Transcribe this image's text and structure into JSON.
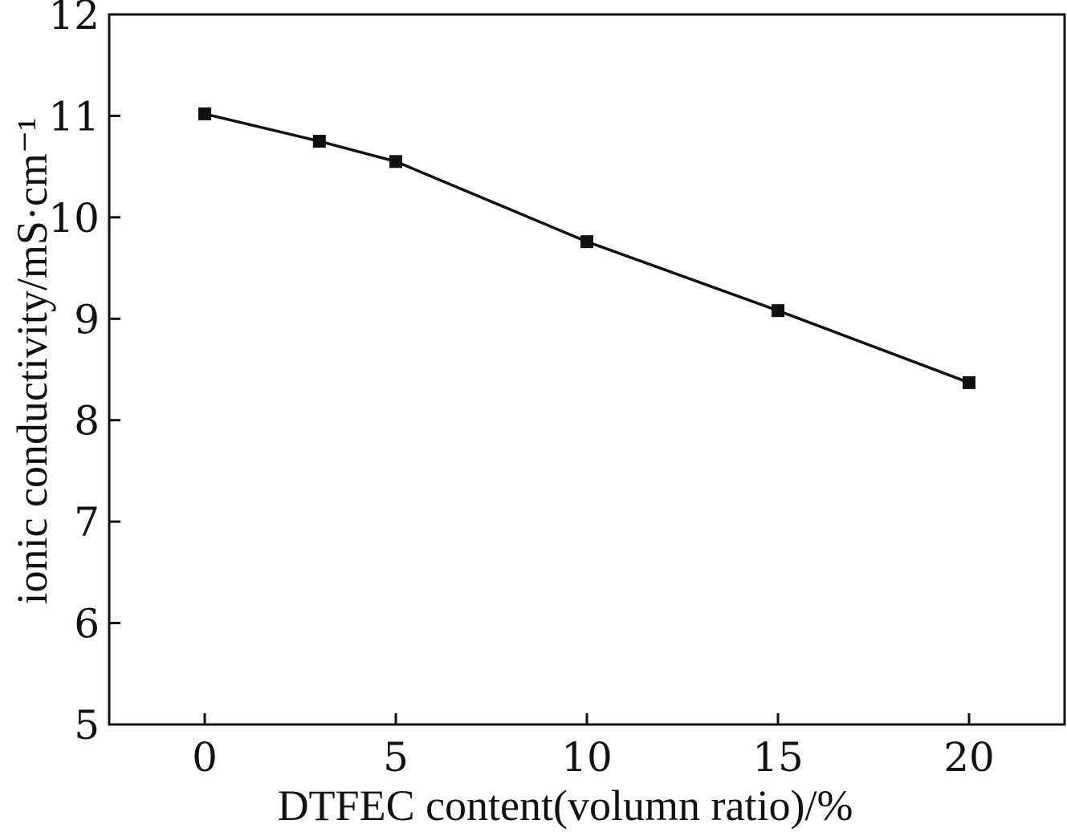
{
  "chart_data": {
    "type": "line",
    "title": "",
    "xlabel": "DTFEC content(volumn ratio)/%",
    "ylabel": "ionic conductivity/mS·cm⁻¹",
    "xlim": [
      -2.5,
      22.5
    ],
    "ylim": [
      5,
      12
    ],
    "x_ticks": [
      0,
      5,
      10,
      15,
      20
    ],
    "y_ticks": [
      5,
      6,
      7,
      8,
      9,
      10,
      11,
      12
    ],
    "grid": false,
    "legend": "none",
    "series": [
      {
        "name": "ionic conductivity",
        "marker": "square",
        "color": "#111111",
        "x": [
          0,
          3,
          5,
          10,
          15,
          20
        ],
        "values": [
          11.02,
          10.75,
          10.55,
          9.76,
          9.08,
          8.37
        ]
      }
    ]
  }
}
